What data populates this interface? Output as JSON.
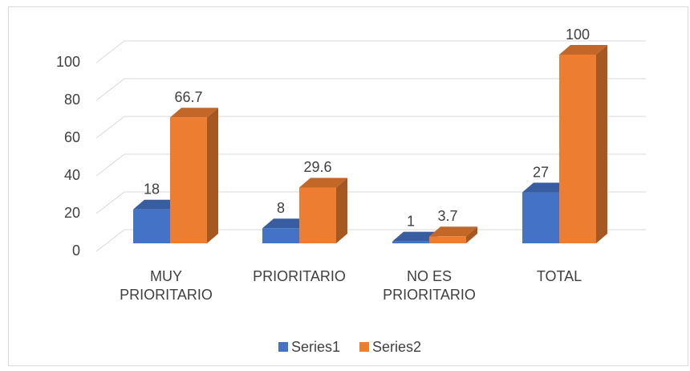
{
  "chart_data": {
    "type": "bar3d",
    "categories": [
      "MUY PRIORITARIO",
      "PRIORITARIO",
      "NO ES PRIORITARIO",
      "TOTAL"
    ],
    "series": [
      {
        "name": "Series1",
        "color": "#4472c4",
        "values": [
          18,
          8,
          1,
          27
        ]
      },
      {
        "name": "Series2",
        "color": "#ed7d31",
        "values": [
          66.7,
          29.6,
          3.7,
          100
        ]
      }
    ],
    "ylim": [
      0,
      100
    ],
    "yticks": [
      0,
      20,
      40,
      60,
      80,
      100
    ],
    "grid": true,
    "legend": "bottom"
  }
}
